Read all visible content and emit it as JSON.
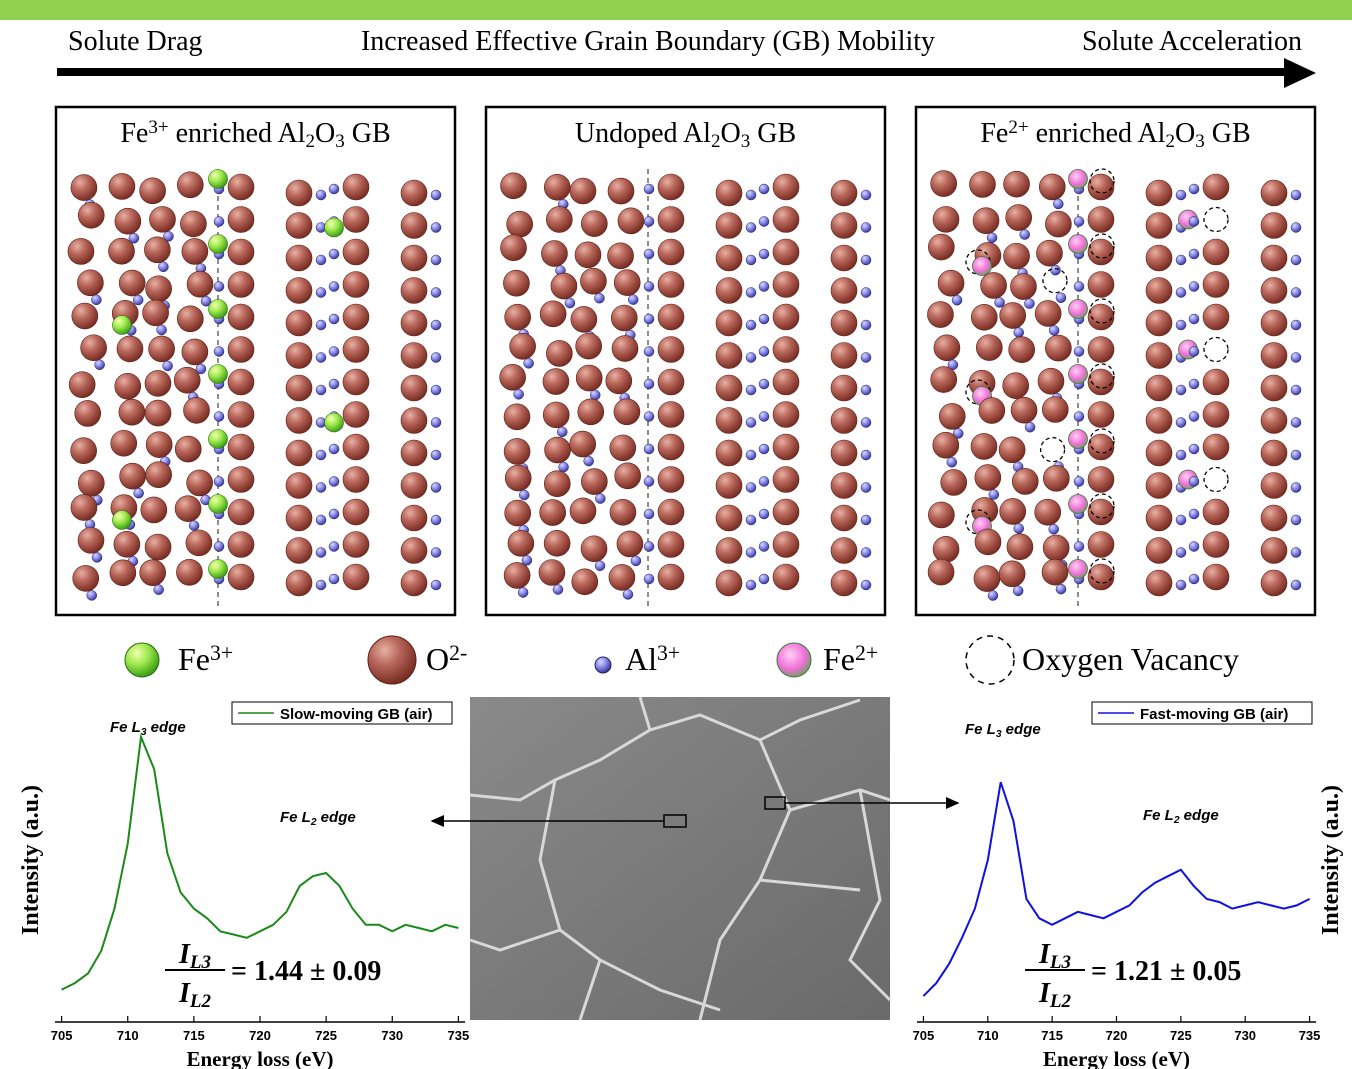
{
  "header": {
    "left": "Solute Drag",
    "center": "Increased Effective Grain Boundary (GB) Mobility",
    "right": "Solute Acceleration"
  },
  "panels": [
    {
      "title": [
        {
          "t": "Fe"
        },
        {
          "sup": "3+"
        },
        {
          "t": " enriched Al"
        },
        {
          "sub": "2"
        },
        {
          "t": "O"
        },
        {
          "sub": "3"
        },
        {
          "t": " GB"
        }
      ]
    },
    {
      "title": [
        {
          "t": "Undoped Al"
        },
        {
          "sub": "2"
        },
        {
          "t": "O"
        },
        {
          "sub": "3"
        },
        {
          "t": " GB"
        }
      ]
    },
    {
      "title": [
        {
          "t": "Fe"
        },
        {
          "sup": "2+"
        },
        {
          "t": " enriched Al"
        },
        {
          "sub": "2"
        },
        {
          "t": "O"
        },
        {
          "sub": "3"
        },
        {
          "t": " GB"
        }
      ]
    }
  ],
  "legend": [
    {
      "label": [
        {
          "t": "Fe"
        },
        {
          "sup": "3+"
        }
      ]
    },
    {
      "label": [
        {
          "t": "O"
        },
        {
          "sup": "2-"
        }
      ]
    },
    {
      "label": [
        {
          "t": "Al"
        },
        {
          "sup": "3+"
        }
      ]
    },
    {
      "label": [
        {
          "t": "Fe"
        },
        {
          "sup": "2+"
        }
      ]
    },
    {
      "label": [
        {
          "t": "Oxygen Vacancy"
        }
      ]
    }
  ],
  "chart_data": [
    {
      "type": "line",
      "x": [
        705,
        706,
        707,
        708,
        709,
        710,
        711,
        712,
        713,
        714,
        715,
        716,
        717,
        718,
        719,
        720,
        721,
        722,
        723,
        724,
        725,
        726,
        727,
        728,
        729,
        730,
        731,
        732,
        733,
        734,
        735
      ],
      "series": [
        {
          "name": "Slow-moving GB (air)",
          "color": "#1a8a1a",
          "values": [
            10,
            12,
            15,
            22,
            35,
            55,
            88,
            78,
            52,
            40,
            35,
            32,
            28,
            27,
            26,
            28,
            30,
            34,
            42,
            45,
            46,
            42,
            35,
            30,
            30,
            28,
            30,
            29,
            28,
            30,
            29
          ]
        }
      ],
      "xlim": [
        704.5,
        735.5
      ],
      "xticks": [
        705,
        710,
        715,
        720,
        725,
        730,
        735
      ],
      "ylim": [
        0,
        100
      ],
      "xlabel": "Energy loss (eV)",
      "ylabel": "Intensity (a.u.)",
      "annotations": [
        [
          {
            "t": "Fe L"
          },
          {
            "sub": "3"
          },
          {
            "t": " edge"
          }
        ],
        [
          {
            "t": "Fe L"
          },
          {
            "sub": "2"
          },
          {
            "t": " edge"
          }
        ]
      ],
      "ratio": {
        "numerator": [
          {
            "t": "I"
          },
          {
            "sub": "L3"
          }
        ],
        "denominator": [
          {
            "t": "I"
          },
          {
            "sub": "L2"
          }
        ],
        "value": "= 1.44 ± 0.09"
      }
    },
    {
      "type": "line",
      "x": [
        705,
        706,
        707,
        708,
        709,
        710,
        711,
        712,
        713,
        714,
        715,
        716,
        717,
        718,
        719,
        720,
        721,
        722,
        723,
        724,
        725,
        726,
        727,
        728,
        729,
        730,
        731,
        732,
        733,
        734,
        735
      ],
      "series": [
        {
          "name": "Fast-moving GB (air)",
          "color": "#1010e0",
          "values": [
            8,
            12,
            18,
            26,
            35,
            50,
            74,
            62,
            38,
            32,
            30,
            32,
            34,
            33,
            32,
            34,
            36,
            40,
            43,
            45,
            47,
            42,
            38,
            37,
            35,
            36,
            37,
            36,
            35,
            36,
            38
          ]
        }
      ],
      "xlim": [
        704.5,
        735.5
      ],
      "xticks": [
        705,
        710,
        715,
        720,
        725,
        730,
        735
      ],
      "ylim": [
        0,
        100
      ],
      "xlabel": "Energy loss (eV)",
      "ylabel": "Intensity (a.u.)",
      "annotations": [
        [
          {
            "t": "Fe L"
          },
          {
            "sub": "3"
          },
          {
            "t": " edge"
          }
        ],
        [
          {
            "t": "Fe L"
          },
          {
            "sub": "2"
          },
          {
            "t": " edge"
          }
        ]
      ],
      "ratio": {
        "numerator": [
          {
            "t": "I"
          },
          {
            "sub": "L3"
          }
        ],
        "denominator": [
          {
            "t": "I"
          },
          {
            "sub": "L2"
          }
        ],
        "value": "= 1.21 ± 0.05"
      }
    }
  ]
}
